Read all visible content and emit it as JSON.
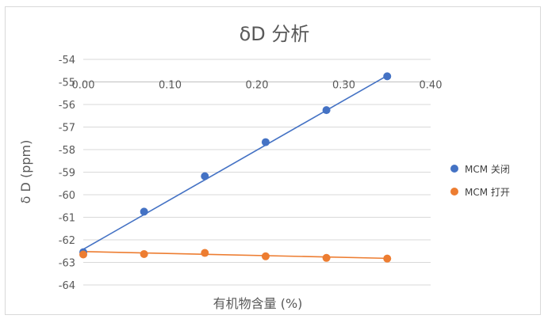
{
  "chart_data": {
    "type": "scatter",
    "title": "δD 分析",
    "xlabel": "有机物含量 (%)",
    "ylabel": "δ D (ppm)",
    "xlim": [
      0,
      0.4
    ],
    "ylim": [
      -64,
      -54
    ],
    "x_ticks": [
      "0.00",
      "0.10",
      "0.20",
      "0.30",
      "0.40"
    ],
    "y_ticks": [
      "-54",
      "-55",
      "-56",
      "-57",
      "-58",
      "-59",
      "-60",
      "-61",
      "-62",
      "-63",
      "-64"
    ],
    "x_axis_crosses_at": -55,
    "grid": true,
    "legend_position": "right",
    "series": [
      {
        "name": "MCM 关闭",
        "color": "#4472c4",
        "x": [
          0,
          0.07,
          0.14,
          0.21,
          0.28,
          0.35
        ],
        "y": [
          -62.55,
          -60.75,
          -59.18,
          -57.67,
          -56.25,
          -54.75
        ],
        "trendline": {
          "from": [
            0,
            -62.42
          ],
          "to": [
            0.35,
            -54.72
          ]
        }
      },
      {
        "name": "MCM 打开",
        "color": "#ed7d31",
        "x": [
          0,
          0.07,
          0.14,
          0.21,
          0.28,
          0.35
        ],
        "y": [
          -62.65,
          -62.63,
          -62.58,
          -62.73,
          -62.8,
          -62.83
        ],
        "trendline": {
          "from": [
            0,
            -62.52
          ],
          "to": [
            0.35,
            -62.82
          ]
        }
      }
    ]
  }
}
